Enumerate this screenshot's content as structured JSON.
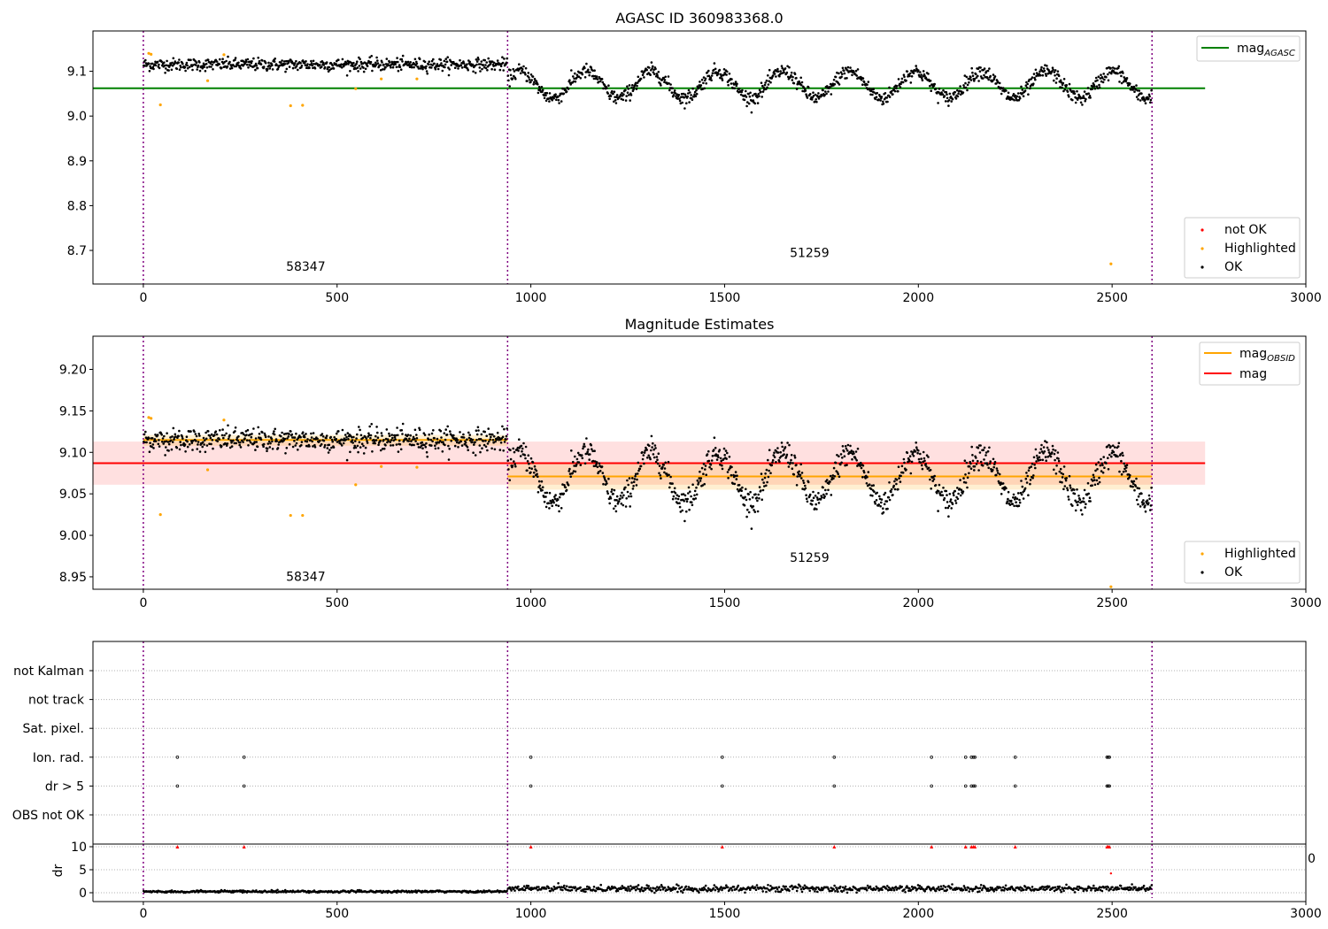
{
  "figure": {
    "panels": [
      "agasc-panel",
      "estimates-panel",
      "flags-panel",
      "dr-panel"
    ]
  },
  "chart_data": [
    {
      "id": "agasc-panel",
      "type": "scatter",
      "title": "AGASC ID 360983368.0",
      "xlim": [
        -130,
        3000
      ],
      "ylim": [
        8.625,
        9.19
      ],
      "xticks": [
        0,
        500,
        1000,
        1500,
        2000,
        2500,
        3000
      ],
      "yticks": [
        8.7,
        8.8,
        8.9,
        9.0,
        9.1
      ],
      "ytick_labels": [
        "8.7",
        "8.8",
        "8.9",
        "9.0",
        "9.1"
      ],
      "vlines": [
        0,
        940,
        2603
      ],
      "obsid_annotations": [
        {
          "label": "58347",
          "x": 470,
          "y": 8.655
        },
        {
          "label": "51259",
          "x": 1770,
          "y": 8.685
        }
      ],
      "hlines": [
        {
          "name": "mag_AGASC",
          "y": 9.062,
          "x0": -130,
          "x1": 2740,
          "color": "#008000"
        }
      ],
      "segments": [
        {
          "x0": 0,
          "x1": 940,
          "base": 9.115,
          "noise": 0.007,
          "amp": 0.0,
          "period": 1
        },
        {
          "x0": 940,
          "x1": 2603,
          "base": 9.07,
          "noise": 0.008,
          "amp": 0.03,
          "period": 170
        }
      ],
      "highlighted_points": [
        {
          "x": 14,
          "y": 9.14
        },
        {
          "x": 20,
          "y": 9.138
        },
        {
          "x": 44,
          "y": 9.025
        },
        {
          "x": 166,
          "y": 9.079
        },
        {
          "x": 208,
          "y": 9.137
        },
        {
          "x": 380,
          "y": 9.023
        },
        {
          "x": 411,
          "y": 9.024
        },
        {
          "x": 548,
          "y": 9.061
        },
        {
          "x": 614,
          "y": 9.083
        },
        {
          "x": 706,
          "y": 9.083
        },
        {
          "x": 2497,
          "y": 8.67
        }
      ],
      "legend_lines": [
        {
          "label": "mag",
          "subscript": "AGASC",
          "color": "#008000"
        }
      ],
      "legend_markers": [
        {
          "label": "not OK",
          "color": "#ff0000"
        },
        {
          "label": "Highlighted",
          "color": "#ffa500"
        },
        {
          "label": "OK",
          "color": "#000000"
        }
      ]
    },
    {
      "id": "estimates-panel",
      "type": "scatter",
      "title": "Magnitude Estimates",
      "xlim": [
        -130,
        3000
      ],
      "ylim": [
        8.935,
        9.24
      ],
      "xticks": [
        0,
        500,
        1000,
        1500,
        2000,
        2500,
        3000
      ],
      "yticks": [
        8.95,
        9.0,
        9.05,
        9.1,
        9.15,
        9.2
      ],
      "ytick_labels": [
        "8.95",
        "9.00",
        "9.05",
        "9.10",
        "9.15",
        "9.20"
      ],
      "vlines": [
        0,
        940,
        2603
      ],
      "obsid_annotations": [
        {
          "label": "58347",
          "x": 470,
          "y": 8.945
        },
        {
          "label": "51259",
          "x": 1770,
          "y": 8.968
        }
      ],
      "bands": [
        {
          "x0": -130,
          "x1": 2740,
          "y0": 9.061,
          "y1": 9.113,
          "color": "#ff0000",
          "opacity": 0.12
        },
        {
          "x0": 940,
          "x1": 2603,
          "y0": 9.055,
          "y1": 9.087,
          "color": "#ffa500",
          "opacity": 0.18
        },
        {
          "x0": 0,
          "x1": 940,
          "y0": 9.108,
          "y1": 9.121,
          "color": "#ffa500",
          "opacity": 0.18
        }
      ],
      "hlines": [
        {
          "name": "mag",
          "y": 9.087,
          "x0": -130,
          "x1": 2740,
          "color": "#ff0000"
        },
        {
          "name": "mag_OBSID_1",
          "y": 9.115,
          "x0": 0,
          "x1": 940,
          "color": "#ffa500"
        },
        {
          "name": "mag_OBSID_2",
          "y": 9.071,
          "x0": 940,
          "x1": 2603,
          "color": "#ffa500"
        }
      ],
      "segments": [
        {
          "x0": 0,
          "x1": 940,
          "base": 9.115,
          "noise": 0.007,
          "amp": 0.0,
          "period": 1
        },
        {
          "x0": 940,
          "x1": 2603,
          "base": 9.07,
          "noise": 0.008,
          "amp": 0.03,
          "period": 170
        }
      ],
      "highlighted_points": [
        {
          "x": 14,
          "y": 9.142
        },
        {
          "x": 20,
          "y": 9.141
        },
        {
          "x": 44,
          "y": 9.025
        },
        {
          "x": 166,
          "y": 9.079
        },
        {
          "x": 208,
          "y": 9.139
        },
        {
          "x": 380,
          "y": 9.024
        },
        {
          "x": 411,
          "y": 9.024
        },
        {
          "x": 548,
          "y": 9.061
        },
        {
          "x": 614,
          "y": 9.083
        },
        {
          "x": 706,
          "y": 9.082
        },
        {
          "x": 2497,
          "y": 8.938
        }
      ],
      "legend_lines": [
        {
          "label": "mag",
          "subscript": "OBSID",
          "color": "#ffa500"
        },
        {
          "label": "mag",
          "subscript": "",
          "color": "#ff0000"
        }
      ],
      "legend_markers": [
        {
          "label": "Highlighted",
          "color": "#ffa500"
        },
        {
          "label": "OK",
          "color": "#000000"
        }
      ]
    },
    {
      "id": "flags-panel",
      "type": "scatter",
      "categories": [
        "not Kalman",
        "not track",
        "Sat. pixel.",
        "Ion. rad.",
        "dr > 5",
        "OBS not OK"
      ],
      "xlim": [
        -130,
        3000
      ],
      "vlines": [
        0,
        940,
        2603
      ],
      "flag_x": [
        88,
        260,
        1000,
        1494,
        1783,
        2034,
        2122,
        2137,
        2142,
        2146,
        2250,
        2487,
        2490,
        2493
      ],
      "flag_rows": [
        "Ion. rad.",
        "dr > 5"
      ]
    },
    {
      "id": "dr-panel",
      "type": "scatter",
      "ylabel": "dr",
      "xlim": [
        -130,
        3000
      ],
      "ylim": [
        -0.5,
        10.5
      ],
      "yticks": [
        0,
        5,
        10
      ],
      "xticks": [
        0,
        500,
        1000,
        1500,
        2000,
        2500,
        3000
      ],
      "clipped_tick_label": "0",
      "vlines": [
        0,
        940,
        2603
      ],
      "flag_x": [
        88,
        260,
        1000,
        1494,
        1783,
        2034,
        2122,
        2137,
        2142,
        2146,
        2250,
        2487,
        2490,
        2493
      ],
      "flag_y": 10,
      "extra_red": [
        {
          "x": 2497,
          "y": 4.2
        }
      ],
      "segments": [
        {
          "x0": 0,
          "x1": 940,
          "base": 0.25,
          "noise": 0.12
        },
        {
          "x0": 940,
          "x1": 2603,
          "base": 0.9,
          "noise": 0.35
        }
      ]
    }
  ]
}
